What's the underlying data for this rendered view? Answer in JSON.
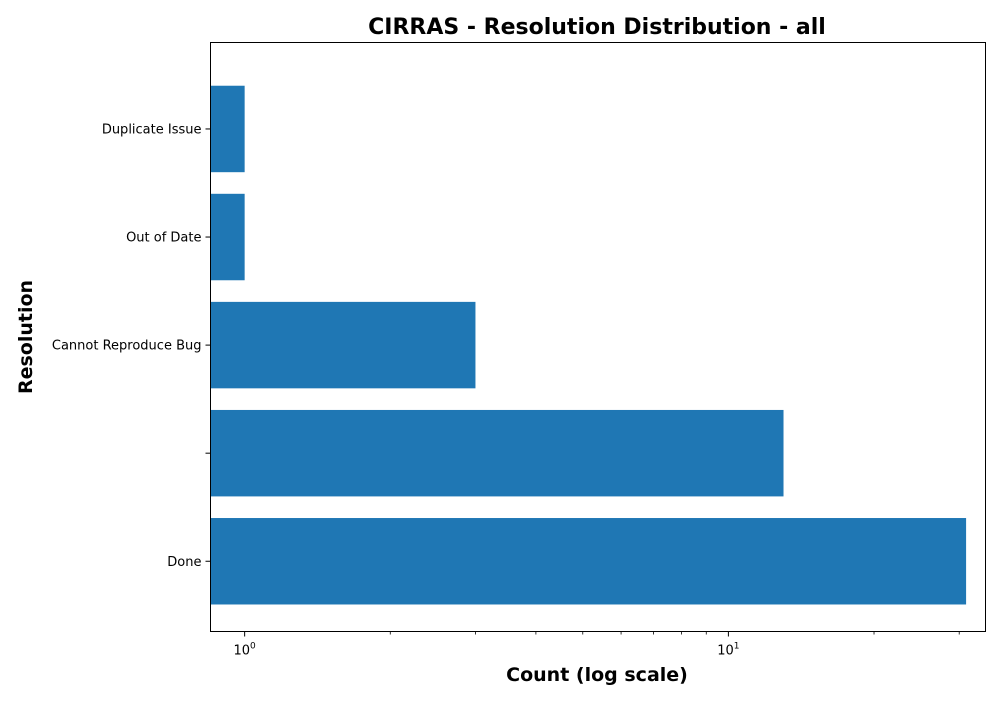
{
  "chart_data": {
    "type": "bar",
    "orientation": "horizontal",
    "title": "CIRRAS - Resolution Distribution - all",
    "xlabel": "Count (log scale)",
    "ylabel": "Resolution",
    "x_scale": "log",
    "xlim": [
      0.85,
      34
    ],
    "x_major_ticks": [
      {
        "value": 1,
        "base": "10",
        "exponent": "0"
      },
      {
        "value": 10,
        "base": "10",
        "exponent": "1"
      }
    ],
    "categories": [
      "Done",
      "",
      "Cannot Reproduce Bug",
      "Out of Date",
      "Duplicate Issue"
    ],
    "values": [
      31,
      13,
      3,
      1,
      1
    ],
    "bar_color": "#1f77b4",
    "grid": false,
    "legend": "none"
  }
}
